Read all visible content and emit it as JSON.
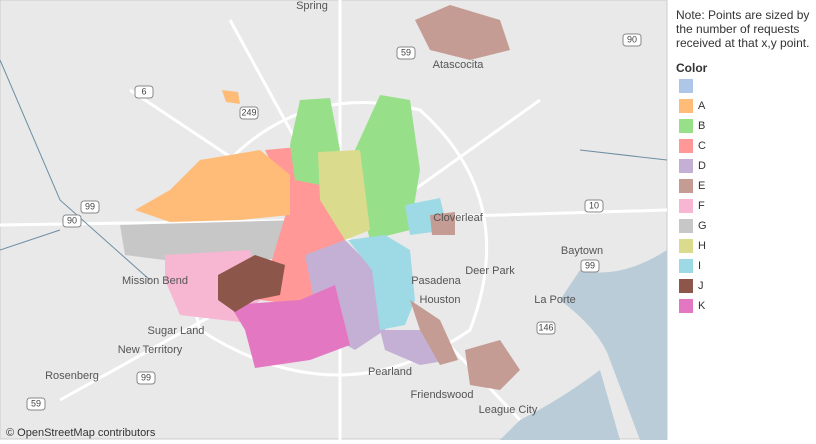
{
  "note": "Note: Points are sized by the number of requests received at that x,y point.",
  "legend": {
    "title": "Color",
    "items": [
      {
        "label": "A",
        "color": "#ffbb78"
      },
      {
        "label": "B",
        "color": "#98df8a"
      },
      {
        "label": "C",
        "color": "#ff9896"
      },
      {
        "label": "D",
        "color": "#c5b0d5"
      },
      {
        "label": "E",
        "color": "#c49c94"
      },
      {
        "label": "F",
        "color": "#f7b6d2"
      },
      {
        "label": "G",
        "color": "#c7c7c7"
      },
      {
        "label": "H",
        "color": "#dbdb8d"
      },
      {
        "label": "I",
        "color": "#9edae5"
      },
      {
        "label": "J",
        "color": "#8c564b"
      },
      {
        "label": "K",
        "color": "#e377c2"
      }
    ],
    "unlabeled_color": "#aec7e8"
  },
  "map": {
    "places": [
      "Spring",
      "Atascocita",
      "Cloverleaf",
      "Baytown",
      "Deer Park",
      "Pasadena",
      "Houston",
      "La Porte",
      "Mission Bend",
      "Sugar Land",
      "New Territory",
      "Rosenberg",
      "Pearland",
      "Friendswood",
      "League City"
    ],
    "roads": [
      "59",
      "90",
      "6",
      "249",
      "90",
      "99",
      "10",
      "99",
      "146",
      "99",
      "59"
    ],
    "attribution": "© OpenStreetMap contributors"
  }
}
